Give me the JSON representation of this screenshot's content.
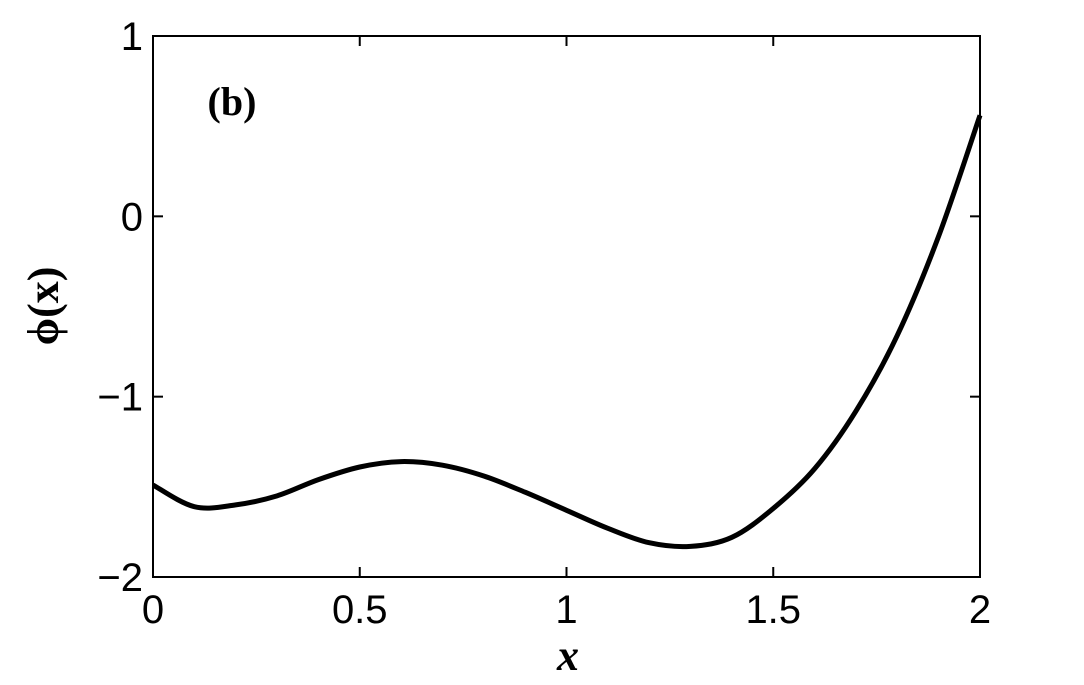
{
  "chart_data": {
    "type": "line",
    "annotation": "(b)",
    "xlabel": "x",
    "ylabel": "ϕ(x)",
    "x": [
      0,
      0.1,
      0.2,
      0.3,
      0.4,
      0.5,
      0.6,
      0.7,
      0.8,
      0.9,
      1.0,
      1.1,
      1.2,
      1.3,
      1.4,
      1.5,
      1.6,
      1.7,
      1.8,
      1.9,
      2.0
    ],
    "series": [
      {
        "color": "#000000",
        "values": [
          -1.49,
          -1.61,
          -1.6,
          -1.55,
          -1.46,
          -1.39,
          -1.36,
          -1.38,
          -1.44,
          -1.53,
          -1.63,
          -1.73,
          -1.81,
          -1.83,
          -1.78,
          -1.62,
          -1.4,
          -1.08,
          -0.66,
          -0.11,
          0.56
        ]
      }
    ],
    "xlim": [
      0,
      2
    ],
    "ylim": [
      -2,
      1
    ],
    "xticks": [
      0,
      0.5,
      1,
      1.5,
      2
    ],
    "yticks": [
      {
        "value": -2,
        "label": "−2"
      },
      {
        "value": -1,
        "label": "−1"
      },
      0,
      1
    ]
  }
}
